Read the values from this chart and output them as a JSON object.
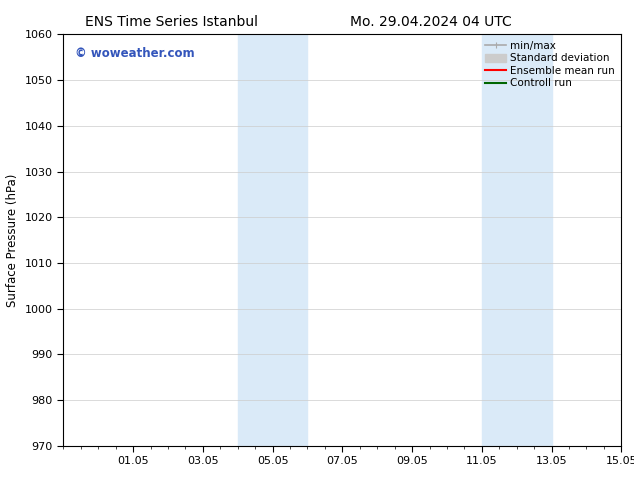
{
  "title_left": "ENS Time Series Istanbul",
  "title_right": "Mo. 29.04.2024 04 UTC",
  "ylabel": "Surface Pressure (hPa)",
  "ylim": [
    970,
    1060
  ],
  "yticks": [
    970,
    980,
    990,
    1000,
    1010,
    1020,
    1030,
    1040,
    1050,
    1060
  ],
  "xlim": [
    0,
    16
  ],
  "xtick_positions": [
    2,
    4,
    6,
    8,
    10,
    12,
    14,
    16
  ],
  "xtick_labels": [
    "01.05",
    "03.05",
    "05.05",
    "07.05",
    "09.05",
    "11.05",
    "13.05",
    "15.05"
  ],
  "shaded_bands": [
    {
      "start": 5,
      "end": 7
    },
    {
      "start": 12,
      "end": 14
    }
  ],
  "shaded_color": "#daeaf8",
  "watermark_text": "© woweather.com",
  "watermark_color": "#3355bb",
  "legend_items": [
    {
      "label": "min/max",
      "color": "#aaaaaa",
      "lw": 1.2
    },
    {
      "label": "Standard deviation",
      "color": "#cccccc",
      "lw": 6
    },
    {
      "label": "Ensemble mean run",
      "color": "#ff0000",
      "lw": 1.5
    },
    {
      "label": "Controll run",
      "color": "#006600",
      "lw": 1.5
    }
  ],
  "bg_color": "#ffffff",
  "grid_color": "#cccccc",
  "title_fontsize": 10,
  "label_fontsize": 8.5,
  "tick_fontsize": 8,
  "watermark_fontsize": 8.5,
  "legend_fontsize": 7.5
}
